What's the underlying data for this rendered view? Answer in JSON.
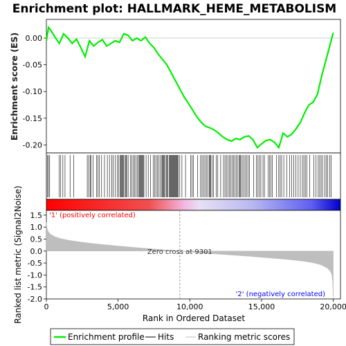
{
  "chart_data": {
    "type": "line",
    "title": "Enrichment plot: HALLMARK_HEME_METABOLISM",
    "xlabel": "Rank in Ordered Dataset",
    "x_ticks": [
      "0",
      "5,000",
      "10,000",
      "15,000",
      "20,000"
    ],
    "x_tick_values": [
      0,
      5000,
      10000,
      15000,
      20000
    ],
    "xlim": [
      0,
      20500
    ],
    "es_panel": {
      "ylabel": "Enrichment score (ES)",
      "ylim": [
        -0.215,
        0.035
      ],
      "y_ticks": [
        "0.00",
        "-0.05",
        "-0.10",
        "-0.15",
        "-0.20"
      ],
      "y_tick_values": [
        0.0,
        -0.05,
        -0.1,
        -0.15,
        -0.2
      ],
      "series": {
        "name": "Enrichment profile",
        "color": "#00ee00",
        "x": [
          0,
          150,
          300,
          600,
          900,
          1200,
          1500,
          1800,
          2100,
          2400,
          2700,
          3000,
          3300,
          3600,
          3900,
          4200,
          4500,
          4800,
          5100,
          5400,
          5700,
          6000,
          6300,
          6600,
          6900,
          7200,
          7500,
          7800,
          8100,
          8400,
          8700,
          9000,
          9300,
          9600,
          9900,
          10200,
          10500,
          10800,
          11100,
          11400,
          11700,
          12000,
          12300,
          12600,
          12900,
          13200,
          13500,
          13800,
          14100,
          14400,
          14700,
          15000,
          15300,
          15600,
          15900,
          16200,
          16500,
          16800,
          17100,
          17400,
          17700,
          18000,
          18300,
          18600,
          18900,
          19200,
          19500,
          19800,
          20000
        ],
        "y": [
          -0.005,
          0.02,
          0.015,
          0.002,
          -0.01,
          0.008,
          0.0,
          -0.01,
          -0.002,
          -0.018,
          -0.035,
          -0.005,
          -0.015,
          -0.008,
          -0.003,
          -0.015,
          -0.01,
          -0.005,
          -0.008,
          0.008,
          0.005,
          -0.005,
          0.0,
          -0.005,
          0.002,
          -0.01,
          -0.018,
          -0.03,
          -0.04,
          -0.05,
          -0.065,
          -0.08,
          -0.095,
          -0.11,
          -0.122,
          -0.135,
          -0.148,
          -0.158,
          -0.165,
          -0.168,
          -0.172,
          -0.178,
          -0.185,
          -0.19,
          -0.193,
          -0.188,
          -0.19,
          -0.185,
          -0.183,
          -0.19,
          -0.205,
          -0.198,
          -0.192,
          -0.19,
          -0.195,
          -0.205,
          -0.178,
          -0.185,
          -0.18,
          -0.17,
          -0.158,
          -0.14,
          -0.125,
          -0.12,
          -0.105,
          -0.07,
          -0.04,
          -0.01,
          0.01
        ]
      }
    },
    "hits": {
      "name": "Hits",
      "x": [
        80,
        150,
        230,
        900,
        1000,
        1150,
        1300,
        1650,
        1900,
        2850,
        2950,
        3050,
        3100,
        3250,
        3500,
        3600,
        3700,
        3850,
        4050,
        4250,
        4400,
        4550,
        4650,
        4800,
        4950,
        5050,
        5150,
        5200,
        5250,
        5300,
        5350,
        5400,
        5500,
        5550,
        5600,
        5700,
        5850,
        5950,
        6050,
        6150,
        6250,
        6350,
        6450,
        6500,
        6550,
        6600,
        6650,
        6700,
        6750,
        6800,
        6950,
        7100,
        7250,
        7450,
        7550,
        7650,
        7750,
        7850,
        7950,
        8050,
        8100,
        8150,
        8200,
        8250,
        8350,
        8400,
        8450,
        8550,
        8600,
        8650,
        8700,
        8750,
        8800,
        8850,
        8900,
        8950,
        9000,
        9050,
        9100,
        9150,
        9200,
        9300,
        9450,
        9700,
        10050,
        10150,
        10250,
        10550,
        10750,
        10850,
        10950,
        11050,
        11150,
        11250,
        11350,
        11400,
        11450,
        11550,
        11650,
        11850,
        11950,
        12150,
        12350,
        12450,
        12550,
        12650,
        12750,
        12850,
        12950,
        13050,
        13150,
        13250,
        13350,
        13450,
        13500,
        13550,
        13650,
        13750,
        13850,
        13950,
        14050,
        14150,
        14450,
        14650,
        14750,
        14850,
        14950,
        15100,
        15200,
        15450,
        15550,
        15650,
        15750,
        16050,
        16200,
        16300,
        16400,
        16550,
        16750,
        16950,
        17100,
        17250,
        17400,
        17550,
        17700,
        17850,
        17950,
        18050,
        18150,
        18350,
        18650,
        18800,
        18950,
        19050,
        19150,
        19250,
        19400,
        19500,
        19600,
        19750,
        19850
      ]
    },
    "ranked_metric_panel": {
      "ylabel": "Ranked list metric (Signal2Noise)",
      "ylim": [
        -2.0,
        1.7
      ],
      "y_ticks": [
        "1.5",
        "1.0",
        "0.5",
        "0.0",
        "-0.5",
        "-1.0",
        "-1.5",
        "-2.0"
      ],
      "y_tick_values": [
        1.5,
        1.0,
        0.5,
        0.0,
        -0.5,
        -1.0,
        -1.5,
        -2.0
      ],
      "series": {
        "name": "Ranking metric scores",
        "color": "#bebebe",
        "x": [
          0,
          50,
          150,
          300,
          600,
          1000,
          1500,
          2000,
          3000,
          4000,
          5000,
          6000,
          7000,
          8000,
          9301,
          10000,
          11000,
          12000,
          13000,
          14000,
          15000,
          16000,
          17000,
          18000,
          18500,
          19000,
          19300,
          19600,
          19800,
          19900,
          19950,
          20000
        ],
        "y": [
          1.2,
          0.95,
          0.8,
          0.7,
          0.6,
          0.52,
          0.46,
          0.41,
          0.33,
          0.27,
          0.21,
          0.16,
          0.11,
          0.06,
          0.0,
          -0.04,
          -0.09,
          -0.13,
          -0.17,
          -0.21,
          -0.26,
          -0.31,
          -0.36,
          -0.43,
          -0.48,
          -0.55,
          -0.62,
          -0.72,
          -0.85,
          -1.0,
          -1.25,
          -2.0
        ]
      },
      "zero_cross_label": "Zero cross at 9301",
      "zero_cross_x": 9301,
      "positive_label": "'1' (positively correlated)",
      "negative_label": "'2' (negatively correlated)",
      "positive_color": "#ff0000",
      "negative_color": "#0000ff"
    },
    "legend": {
      "placement": "bottom",
      "entries": [
        {
          "label": "Enrichment profile",
          "color": "#00ee00"
        },
        {
          "label": "Hits",
          "color": "#000000"
        },
        {
          "label": "Ranking metric scores",
          "color": "#bebebe"
        }
      ]
    }
  }
}
